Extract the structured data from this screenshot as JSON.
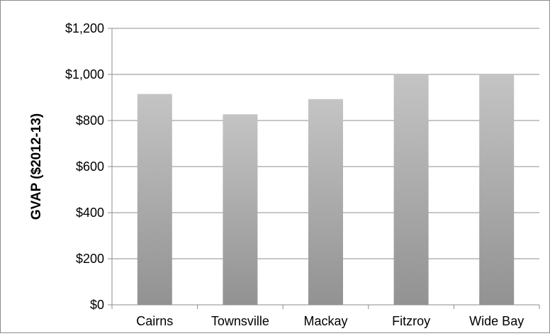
{
  "chart_data": {
    "type": "bar",
    "categories": [
      "Cairns",
      "Townsville",
      "Mackay",
      "Fitzroy",
      "Wide Bay"
    ],
    "values": [
      915,
      827,
      893,
      1000,
      1000
    ],
    "title": "",
    "xlabel": "",
    "ylabel": "GVAP ($2012-13)",
    "ylim": [
      0,
      1200
    ],
    "yticks": [
      0,
      200,
      400,
      600,
      800,
      1000,
      1200
    ],
    "ytick_labels": [
      "$0",
      "$200",
      "$400",
      "$600",
      "$800",
      "$1,000",
      "$1,200"
    ],
    "grid": true,
    "legend": "none",
    "bar_color_top": "#c4c4c4",
    "bar_color_bottom": "#929292"
  }
}
